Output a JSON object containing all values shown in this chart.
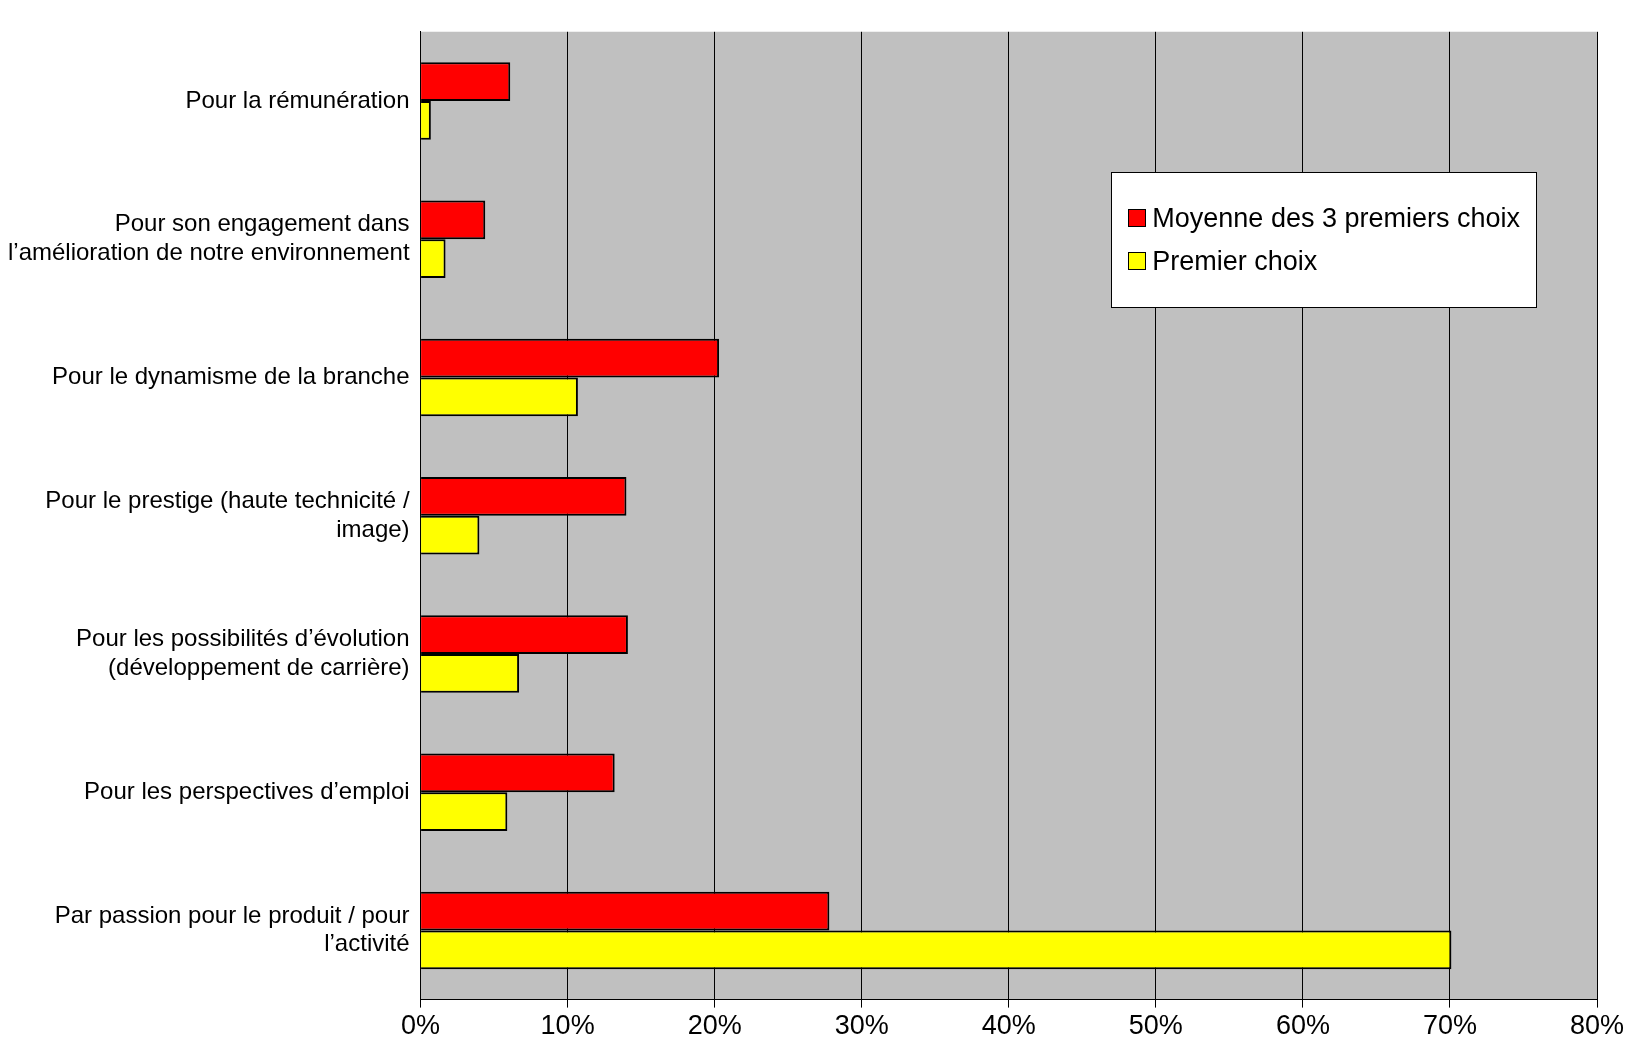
{
  "chart_data": {
    "type": "bar",
    "orientation": "horizontal",
    "categories": [
      "Pour la rémunération",
      "Pour son engagement dans l’amélioration de notre environnement",
      "Pour le dynamisme de la branche",
      "Pour le prestige (haute technicité / image)",
      "Pour les possibilités d’évolution (développement de carrière)",
      "Pour les perspectives d’emploi",
      "Par passion pour le produit / pour l’activité"
    ],
    "series": [
      {
        "name": "Moyenne des 3 premiers choix",
        "color": "#ff0000",
        "values": [
          6.1,
          4.4,
          20.3,
          14.0,
          14.1,
          13.2,
          27.8
        ]
      },
      {
        "name": "Premier choix",
        "color": "#ffff00",
        "values": [
          0.7,
          1.7,
          10.7,
          4.0,
          6.7,
          5.9,
          70.1
        ]
      }
    ],
    "xlim": [
      0,
      80
    ],
    "xticks": [
      {
        "value": 0,
        "label": "0%"
      },
      {
        "value": 10,
        "label": "10%"
      },
      {
        "value": 20,
        "label": "20%"
      },
      {
        "value": 30,
        "label": "30%"
      },
      {
        "value": 40,
        "label": "40%"
      },
      {
        "value": 50,
        "label": "50%"
      },
      {
        "value": 60,
        "label": "60%"
      },
      {
        "value": 70,
        "label": "70%"
      },
      {
        "value": 80,
        "label": "80%"
      }
    ],
    "grid": "x",
    "legend": "top right"
  }
}
